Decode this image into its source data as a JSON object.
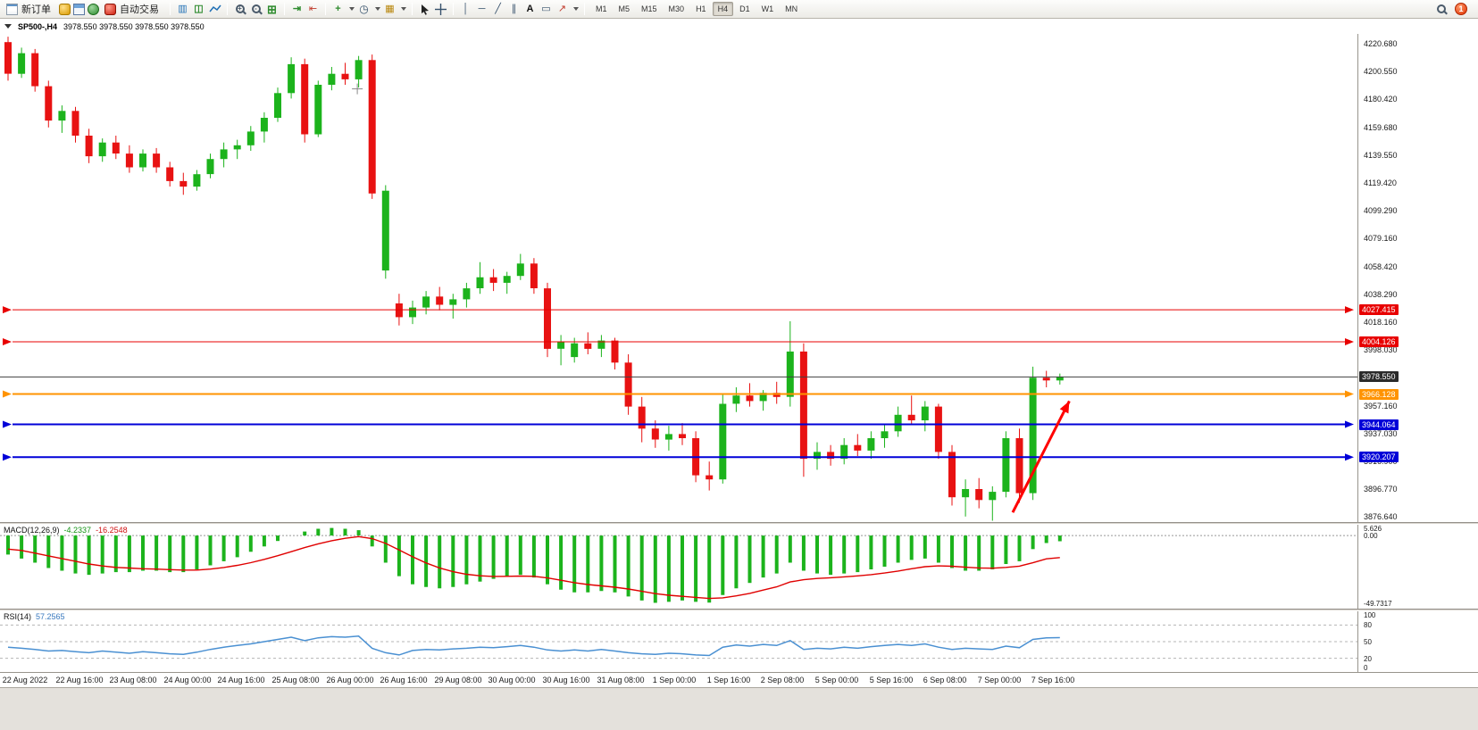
{
  "toolbar": {
    "new_order_label": "新订单",
    "autotrading_label": "自动交易",
    "timeframes": [
      "M1",
      "M5",
      "M15",
      "M30",
      "H1",
      "H4",
      "D1",
      "W1",
      "MN"
    ],
    "active_timeframe": "H4",
    "notification_count": "1",
    "text_tool_glyph": "A"
  },
  "window": {
    "symbol_period": "SP500-,H4",
    "ohlc": "3978.550 3978.550 3978.550 3978.550"
  },
  "price_axis_ticks": [
    "4220.680",
    "4200.550",
    "4180.420",
    "4159.680",
    "4139.550",
    "4119.420",
    "4099.290",
    "4079.160",
    "4058.420",
    "4038.290",
    "4018.160",
    "3998.030",
    "3957.160",
    "3937.030",
    "3916.900",
    "3896.770",
    "3876.640"
  ],
  "time_axis": [
    "22 Aug 2022",
    "22 Aug 16:00",
    "23 Aug 08:00",
    "24 Aug 00:00",
    "24 Aug 16:00",
    "25 Aug 08:00",
    "26 Aug 00:00",
    "26 Aug 16:00",
    "29 Aug 08:00",
    "30 Aug 00:00",
    "30 Aug 16:00",
    "31 Aug 08:00",
    "1 Sep 00:00",
    "1 Sep 16:00",
    "2 Sep 08:00",
    "5 Sep 00:00",
    "5 Sep 16:00",
    "6 Sep 08:00",
    "7 Sep 00:00",
    "7 Sep 16:00"
  ],
  "macd": {
    "title": "MACD(12,26,9)",
    "value_main": "-4.2337",
    "value_signal": "-16.2548",
    "axis_labels": [
      "5.626",
      "0.00",
      "-49.7317"
    ]
  },
  "rsi": {
    "title": "RSI(14)",
    "value": "57.2565",
    "axis_labels": [
      "100",
      "80",
      "50",
      "20",
      "0"
    ]
  },
  "chart_data": {
    "type": "candlestick",
    "symbol": "SP500-",
    "period": "H4",
    "price_range": [
      3873,
      4228
    ],
    "colors": {
      "up": "#1cb31c",
      "down": "#e81212",
      "bid_line": "#404040",
      "bid_badge": "#2b2b2b",
      "rsi_line": "#4a90d2",
      "macd_bar": "#1cb31c",
      "macd_signal": "#e00000"
    },
    "bid": {
      "price": 3978.55,
      "label": "3978.550"
    },
    "levels": [
      {
        "price": 4027.415,
        "label": "4027.415",
        "color": "#e80000",
        "width": 1
      },
      {
        "price": 4004.126,
        "label": "4004.126",
        "color": "#e80000",
        "width": 1
      },
      {
        "price": 3966.128,
        "label": "3966.128",
        "color": "#ff9300",
        "width": 2
      },
      {
        "price": 3944.064,
        "label": "3944.064",
        "color": "#0000d8",
        "width": 2
      },
      {
        "price": 3920.207,
        "label": "3920.207",
        "color": "#0000d8",
        "width": 2
      }
    ],
    "trend_arrow": {
      "candle_from": 74.5,
      "price_from": 3880,
      "candle_to": 78.7,
      "price_to": 3961,
      "color": "#ff0000"
    },
    "cross_marker": {
      "candle": 25.9,
      "price": 4188,
      "color": "#888888"
    },
    "candles": [
      [
        4222,
        4226,
        4194,
        4199
      ],
      [
        4199,
        4218,
        4196,
        4214
      ],
      [
        4214,
        4217,
        4186,
        4190
      ],
      [
        4190,
        4194,
        4160,
        4165
      ],
      [
        4165,
        4176,
        4156,
        4172
      ],
      [
        4172,
        4175,
        4149,
        4154
      ],
      [
        4154,
        4159,
        4134,
        4139
      ],
      [
        4139,
        4152,
        4135,
        4149
      ],
      [
        4149,
        4154,
        4137,
        4141
      ],
      [
        4141,
        4147,
        4127,
        4131
      ],
      [
        4131,
        4144,
        4128,
        4141
      ],
      [
        4141,
        4145,
        4127,
        4131
      ],
      [
        4131,
        4135,
        4117,
        4121
      ],
      [
        4121,
        4127,
        4111,
        4117
      ],
      [
        4117,
        4129,
        4114,
        4126
      ],
      [
        4126,
        4141,
        4123,
        4137
      ],
      [
        4137,
        4149,
        4131,
        4144
      ],
      [
        4144,
        4151,
        4137,
        4147
      ],
      [
        4147,
        4161,
        4143,
        4157
      ],
      [
        4157,
        4171,
        4149,
        4167
      ],
      [
        4167,
        4189,
        4164,
        4185
      ],
      [
        4185,
        4211,
        4181,
        4206
      ],
      [
        4206,
        4210,
        4149,
        4155
      ],
      [
        4155,
        4194,
        4153,
        4191
      ],
      [
        4191,
        4204,
        4187,
        4199
      ],
      [
        4199,
        4207,
        4191,
        4195
      ],
      [
        4195,
        4212,
        4189,
        4209
      ],
      [
        4209,
        4213,
        4108,
        4112
      ],
      [
        4056,
        4118,
        4050,
        4114
      ],
      [
        4032,
        4039,
        4016,
        4022
      ],
      [
        4022,
        4034,
        4017,
        4029
      ],
      [
        4029,
        4041,
        4024,
        4037
      ],
      [
        4037,
        4044,
        4027,
        4031
      ],
      [
        4031,
        4039,
        4021,
        4035
      ],
      [
        4035,
        4047,
        4029,
        4043
      ],
      [
        4043,
        4062,
        4039,
        4051
      ],
      [
        4051,
        4057,
        4041,
        4047
      ],
      [
        4047,
        4055,
        4039,
        4052
      ],
      [
        4052,
        4068,
        4049,
        4061
      ],
      [
        4061,
        4065,
        4039,
        4043
      ],
      [
        4043,
        4047,
        3993,
        3999
      ],
      [
        3999,
        4009,
        3987,
        4004
      ],
      [
        3993,
        4007,
        3989,
        4003
      ],
      [
        4003,
        4011,
        3995,
        3999
      ],
      [
        3999,
        4009,
        3993,
        4005
      ],
      [
        4005,
        4007,
        3984,
        3989
      ],
      [
        3989,
        3995,
        3951,
        3957
      ],
      [
        3957,
        3964,
        3931,
        3941
      ],
      [
        3941,
        3947,
        3927,
        3933
      ],
      [
        3933,
        3943,
        3925,
        3937
      ],
      [
        3937,
        3945,
        3929,
        3934
      ],
      [
        3934,
        3939,
        3902,
        3907
      ],
      [
        3907,
        3917,
        3896,
        3904
      ],
      [
        3904,
        3966,
        3901,
        3959
      ],
      [
        3959,
        3971,
        3953,
        3965
      ],
      [
        3965,
        3974,
        3957,
        3961
      ],
      [
        3961,
        3969,
        3954,
        3967
      ],
      [
        3967,
        3975,
        3959,
        3964
      ],
      [
        3964,
        4019,
        3957,
        3997
      ],
      [
        3997,
        4003,
        3906,
        3919
      ],
      [
        3919,
        3931,
        3911,
        3924
      ],
      [
        3924,
        3929,
        3914,
        3919
      ],
      [
        3919,
        3934,
        3915,
        3929
      ],
      [
        3929,
        3937,
        3921,
        3925
      ],
      [
        3925,
        3939,
        3919,
        3934
      ],
      [
        3934,
        3944,
        3927,
        3939
      ],
      [
        3939,
        3957,
        3935,
        3951
      ],
      [
        3951,
        3965,
        3944,
        3947
      ],
      [
        3947,
        3961,
        3939,
        3957
      ],
      [
        3957,
        3959,
        3919,
        3924
      ],
      [
        3924,
        3929,
        3885,
        3891
      ],
      [
        3891,
        3904,
        3877,
        3897
      ],
      [
        3897,
        3905,
        3883,
        3889
      ],
      [
        3889,
        3899,
        3874,
        3895
      ],
      [
        3895,
        3939,
        3891,
        3934
      ],
      [
        3934,
        3941,
        3887,
        3894
      ],
      [
        3894,
        3986,
        3889,
        3978
      ],
      [
        3978,
        3983,
        3971,
        3976
      ],
      [
        3976,
        3981,
        3973,
        3978.55
      ]
    ],
    "macd": {
      "range": [
        -54,
        8
      ],
      "values": [
        -14,
        -17,
        -20,
        -24,
        -26,
        -28,
        -29,
        -28,
        -27,
        -27,
        -26,
        -26,
        -27,
        -27,
        -25,
        -22,
        -19,
        -16,
        -12,
        -8,
        -4,
        0,
        3,
        5,
        5.6,
        5,
        4,
        -8,
        -20,
        -30,
        -36,
        -38,
        -39,
        -38,
        -36,
        -34,
        -32,
        -30,
        -29,
        -31,
        -36,
        -40,
        -42,
        -42,
        -41,
        -42,
        -45,
        -48,
        -49.7,
        -49,
        -48,
        -49,
        -49.5,
        -44,
        -39,
        -35,
        -31,
        -28,
        -20,
        -26,
        -28,
        -29,
        -28,
        -27,
        -25,
        -23,
        -20,
        -18,
        -17,
        -20,
        -24,
        -26,
        -26,
        -25,
        -21,
        -19,
        -10,
        -5.5,
        -4.2337
      ],
      "signal": [
        -10,
        -11,
        -13,
        -15,
        -17,
        -19,
        -21,
        -22.5,
        -23.5,
        -24,
        -24.5,
        -24.8,
        -25.2,
        -25.5,
        -25.5,
        -24.8,
        -23.6,
        -22,
        -20,
        -17.6,
        -14.9,
        -11.9,
        -8.9,
        -6.1,
        -3.8,
        -2,
        -0.8,
        -2.2,
        -5.8,
        -10.6,
        -15.7,
        -20.2,
        -23.9,
        -26.7,
        -28.6,
        -29.7,
        -30.2,
        -30.1,
        -29.9,
        -30.1,
        -31.3,
        -33,
        -34.8,
        -36.2,
        -37.2,
        -38.2,
        -39.5,
        -41.2,
        -42.9,
        -44.1,
        -44.9,
        -45.7,
        -46.5,
        -46,
        -44.6,
        -42.7,
        -40.3,
        -37.9,
        -34.3,
        -32.6,
        -31.7,
        -31.2,
        -30.5,
        -29.8,
        -28.9,
        -27.7,
        -26.2,
        -24.5,
        -23,
        -22.4,
        -22.7,
        -23.4,
        -23.9,
        -24.1,
        -23.5,
        -22.6,
        -20.1,
        -17.2,
        -16.2548
      ]
    },
    "rsi": {
      "levels": [
        80,
        50,
        20
      ],
      "values": [
        40,
        38,
        36,
        33,
        34,
        32,
        30,
        33,
        31,
        29,
        32,
        30,
        28,
        27,
        31,
        36,
        40,
        43,
        46,
        50,
        54,
        58,
        52,
        57,
        59,
        58,
        60,
        38,
        30,
        26,
        34,
        36,
        35,
        37,
        38,
        40,
        39,
        41,
        43,
        40,
        35,
        33,
        35,
        33,
        36,
        33,
        30,
        28,
        27,
        29,
        28,
        26,
        25,
        40,
        44,
        42,
        45,
        43,
        52,
        36,
        38,
        37,
        40,
        38,
        41,
        43,
        45,
        43,
        46,
        40,
        36,
        38,
        37,
        36,
        42,
        39,
        54,
        57,
        57.2565
      ]
    }
  }
}
